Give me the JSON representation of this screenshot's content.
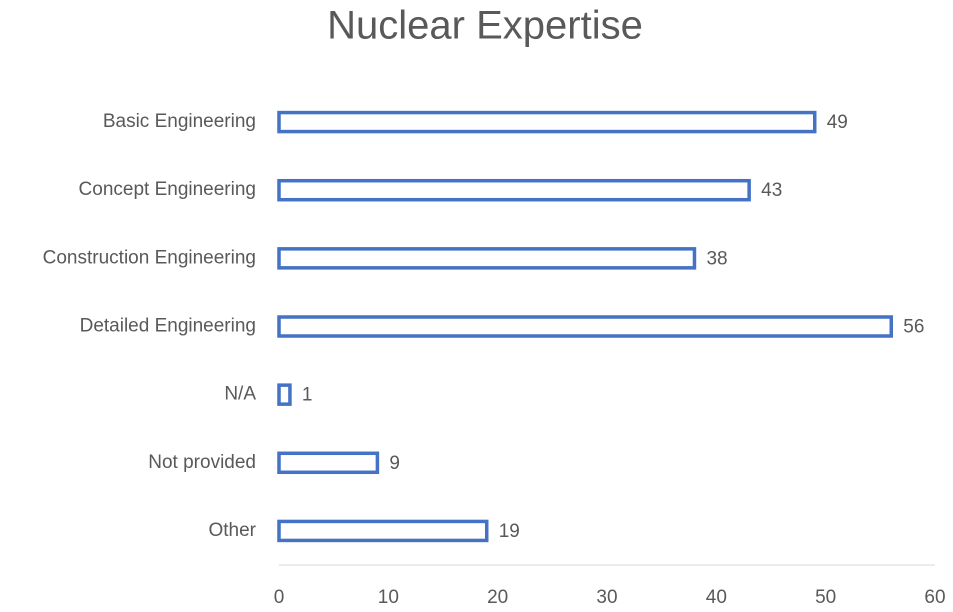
{
  "chart_data": {
    "type": "bar",
    "orientation": "horizontal",
    "title": "Nuclear Expertise",
    "categories": [
      "Basic Engineering",
      "Concept Engineering",
      "Construction Engineering",
      "Detailed Engineering",
      "N/A",
      "Not provided",
      "Other"
    ],
    "values": [
      49,
      43,
      38,
      56,
      1,
      9,
      19
    ],
    "color": "#4472c4",
    "xlim": [
      0,
      60
    ],
    "xticks": [
      0,
      10,
      20,
      30,
      40,
      50,
      60
    ],
    "grid": false
  }
}
